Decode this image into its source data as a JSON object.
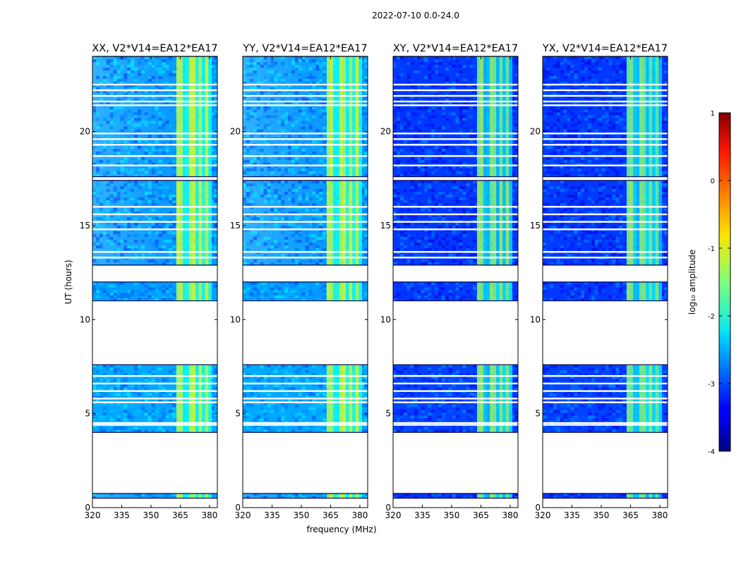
{
  "chart_data": {
    "type": "heatmap",
    "suptitle": "2022-07-10 0.0-24.0",
    "xlabel": "frequency (MHz)",
    "ylabel": "UT (hours)",
    "xlim": [
      320,
      384
    ],
    "ylim": [
      0,
      24
    ],
    "xticks": [
      320,
      335,
      350,
      365,
      380
    ],
    "yticks": [
      0,
      5,
      10,
      15,
      20
    ],
    "panels": [
      {
        "title": "XX, V2*V14=EA12*EA17",
        "background_level": -2.6,
        "rfi_level": -1.4,
        "gradient": true
      },
      {
        "title": "YY, V2*V14=EA12*EA17",
        "background_level": -2.6,
        "rfi_level": -1.4,
        "gradient": true
      },
      {
        "title": "XY, V2*V14=EA12*EA17",
        "background_level": -3.1,
        "rfi_level": -1.7,
        "gradient": false
      },
      {
        "title": "YX, V2*V14=EA12*EA17",
        "background_level": -3.1,
        "rfi_level": -1.7,
        "gradient": false
      }
    ],
    "data_time_ranges_hours": [
      [
        0.5,
        0.75
      ],
      [
        4.0,
        7.6
      ],
      [
        11.0,
        12.0
      ],
      [
        12.9,
        17.4
      ],
      [
        17.6,
        24.0
      ]
    ],
    "flagged_time_lines_hours": [
      22.5,
      22.2,
      21.9,
      21.6,
      21.4,
      19.9,
      19.6,
      19.3,
      18.7,
      18.2,
      16.0,
      15.6,
      15.2,
      14.8,
      13.6,
      13.3,
      7.0,
      6.6,
      6.2,
      5.8,
      5.6,
      4.5,
      4.4
    ],
    "rfi_band_mhz": [
      363,
      381
    ],
    "colorbar": {
      "label": "log₁₀ amplitude",
      "min": -4,
      "max": 1,
      "ticks": [
        1,
        0,
        -1,
        -2,
        -3,
        -4
      ],
      "colormap": "jet"
    }
  }
}
